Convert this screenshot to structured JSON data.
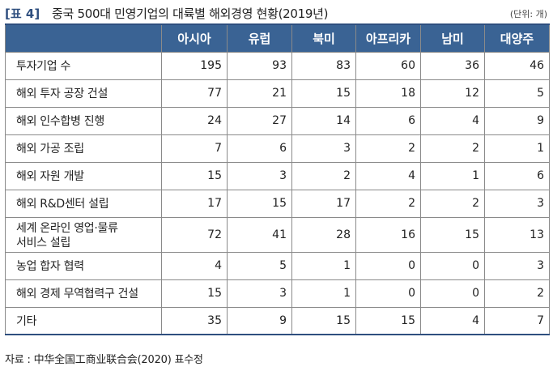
{
  "title": {
    "label": "[표 4]",
    "text": "중국 500대 민영기업의 대륙별 해외경영 현황(2019년)",
    "unit": "(단위: 개)"
  },
  "table": {
    "columns": [
      "아시아",
      "유럽",
      "북미",
      "아프리카",
      "남미",
      "대양주"
    ],
    "rows": [
      {
        "label": "투자기업 수",
        "values": [
          "195",
          "93",
          "83",
          "60",
          "36",
          "46"
        ]
      },
      {
        "label": "해외 투자 공장 건설",
        "values": [
          "77",
          "21",
          "15",
          "18",
          "12",
          "5"
        ]
      },
      {
        "label": "해외 인수합병 진행",
        "values": [
          "24",
          "27",
          "14",
          "6",
          "4",
          "9"
        ]
      },
      {
        "label": "해외 가공 조립",
        "values": [
          "7",
          "6",
          "3",
          "2",
          "2",
          "1"
        ]
      },
      {
        "label": "해외 자원 개발",
        "values": [
          "15",
          "3",
          "2",
          "4",
          "1",
          "6"
        ]
      },
      {
        "label": "해외 R&D센터 설립",
        "values": [
          "17",
          "15",
          "17",
          "2",
          "2",
          "3"
        ]
      },
      {
        "label": "세계 온라인 영업·물류 서비스 설립",
        "label_line1": "세계 온라인 영업·물류",
        "label_line2": "서비스 설립",
        "values": [
          "72",
          "41",
          "28",
          "16",
          "15",
          "13"
        ]
      },
      {
        "label": "농업 합자 협력",
        "values": [
          "4",
          "5",
          "1",
          "0",
          "0",
          "3"
        ]
      },
      {
        "label": "해외 경제 무역협력구 건설",
        "values": [
          "15",
          "3",
          "1",
          "0",
          "0",
          "2"
        ]
      },
      {
        "label": "기타",
        "values": [
          "35",
          "9",
          "15",
          "15",
          "4",
          "7"
        ]
      }
    ]
  },
  "source": "자료 : 中华全国工商业联合会(2020) 표수정",
  "colors": {
    "header_bg": "#3a6394",
    "header_text": "#ffffff",
    "title_accent": "#2f4f7f"
  }
}
